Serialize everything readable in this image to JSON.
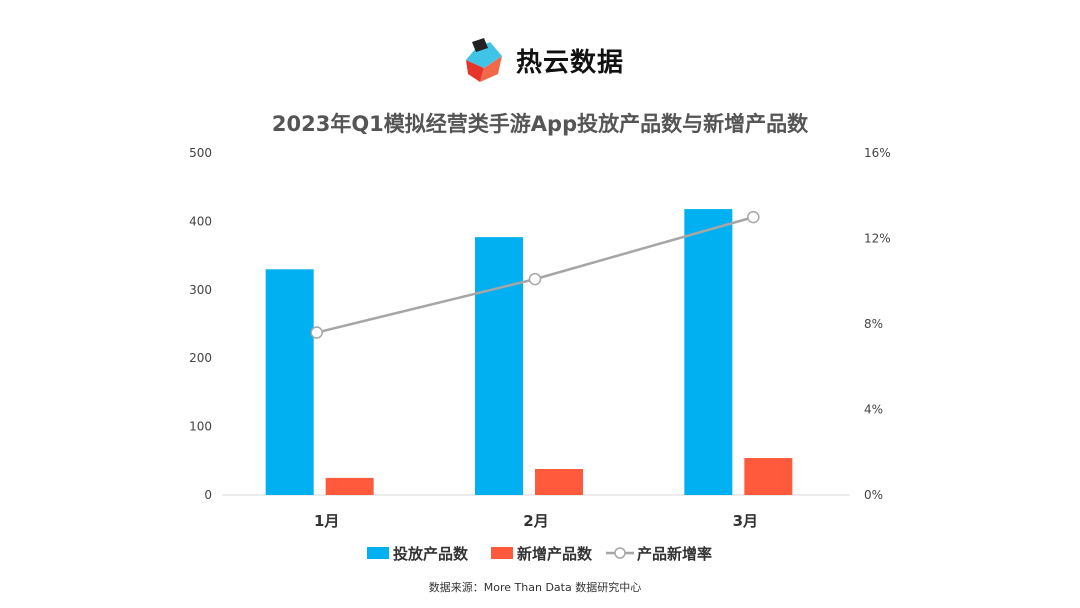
{
  "logo": {
    "text": "热云数据"
  },
  "chart_data": {
    "type": "bar",
    "title": "2023年Q1模拟经营类手游App投放产品数与新增产品数",
    "categories": [
      "1月",
      "2月",
      "3月"
    ],
    "series": [
      {
        "name": "投放产品数",
        "type": "bar",
        "axis": "left",
        "color": "#00b0f0",
        "values": [
          330,
          377,
          418
        ]
      },
      {
        "name": "新增产品数",
        "type": "bar",
        "axis": "left",
        "color": "#ff5a3c",
        "values": [
          25,
          38,
          54
        ]
      },
      {
        "name": "产品新增率",
        "type": "line",
        "axis": "right",
        "color": "#a6a6a6",
        "values": [
          7.6,
          10.1,
          13.0
        ]
      }
    ],
    "left_axis": {
      "min": 0,
      "max": 500,
      "ticks": [
        "0",
        "100",
        "200",
        "300",
        "400",
        "500"
      ]
    },
    "right_axis": {
      "min": 0,
      "max": 16,
      "ticks": [
        "0%",
        "4%",
        "8%",
        "12%",
        "16%"
      ]
    },
    "grid": false,
    "legend": "bottom"
  },
  "source": "数据来源：More Than Data 数据研究中心"
}
